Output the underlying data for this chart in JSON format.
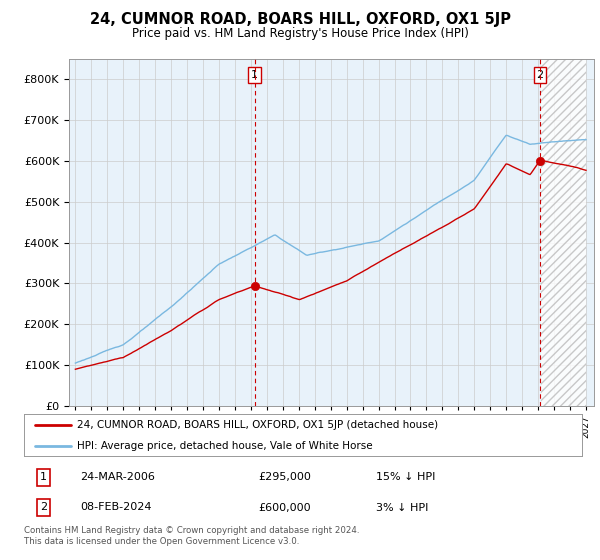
{
  "title": "24, CUMNOR ROAD, BOARS HILL, OXFORD, OX1 5JP",
  "subtitle": "Price paid vs. HM Land Registry's House Price Index (HPI)",
  "footer": "Contains HM Land Registry data © Crown copyright and database right 2024.\nThis data is licensed under the Open Government Licence v3.0.",
  "legend_entry1": "24, CUMNOR ROAD, BOARS HILL, OXFORD, OX1 5JP (detached house)",
  "legend_entry2": "HPI: Average price, detached house, Vale of White Horse",
  "transaction1_date": "24-MAR-2006",
  "transaction1_price": "£295,000",
  "transaction1_hpi": "15% ↓ HPI",
  "transaction2_date": "08-FEB-2024",
  "transaction2_price": "£600,000",
  "transaction2_hpi": "3% ↓ HPI",
  "hpi_color": "#7ab8e0",
  "price_color": "#cc0000",
  "vline_color": "#cc0000",
  "grid_color": "#cccccc",
  "chart_bg_color": "#e8f2fa",
  "background_color": "#ffffff",
  "ylim": [
    0,
    850000
  ],
  "yticks": [
    0,
    100000,
    200000,
    300000,
    400000,
    500000,
    600000,
    700000,
    800000
  ],
  "transaction1_year": 2006.23,
  "transaction2_year": 2024.12,
  "transaction1_value": 295000,
  "transaction2_value": 600000
}
